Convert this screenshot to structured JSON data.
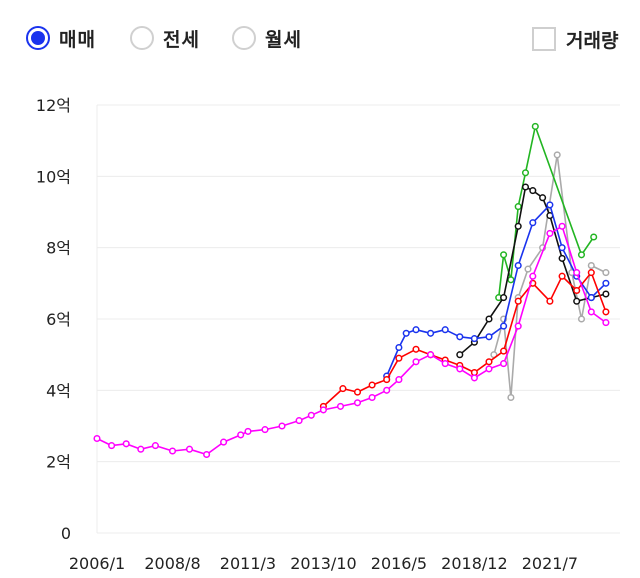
{
  "filters": {
    "trade_types": [
      {
        "label": "매매",
        "selected": true
      },
      {
        "label": "전세",
        "selected": false
      },
      {
        "label": "월세",
        "selected": false
      }
    ],
    "volume_checkbox": {
      "label": "거래량",
      "checked": false
    }
  },
  "colors": {
    "accent": "#1a33ee",
    "grid": "#ececec"
  },
  "chart_data": {
    "type": "line",
    "title": "",
    "xlabel": "",
    "ylabel": "",
    "x_tick_labels": [
      "2006/1",
      "2008/8",
      "2011/3",
      "2013/10",
      "2016/5",
      "2018/12",
      "2021/7"
    ],
    "y_tick_labels": [
      "0",
      "2억",
      "4억",
      "6억",
      "8억",
      "10억",
      "12억"
    ],
    "ylim": [
      0,
      12
    ],
    "y_unit": "억",
    "grid": true,
    "legend": "none",
    "series": [
      {
        "color": "#ff00ff",
        "values": [
          [
            "2006/1",
            2.65
          ],
          [
            "2006/7",
            2.45
          ],
          [
            "2007/1",
            2.5
          ],
          [
            "2007/7",
            2.35
          ],
          [
            "2008/1",
            2.45
          ],
          [
            "2008/8",
            2.3
          ],
          [
            "2009/3",
            2.35
          ],
          [
            "2009/10",
            2.2
          ],
          [
            "2010/5",
            2.55
          ],
          [
            "2010/12",
            2.75
          ],
          [
            "2011/3",
            2.85
          ],
          [
            "2011/10",
            2.9
          ],
          [
            "2012/5",
            3.0
          ],
          [
            "2012/12",
            3.15
          ],
          [
            "2013/5",
            3.3
          ],
          [
            "2013/10",
            3.45
          ],
          [
            "2014/5",
            3.55
          ],
          [
            "2014/12",
            3.65
          ],
          [
            "2015/6",
            3.8
          ],
          [
            "2015/12",
            4.0
          ],
          [
            "2016/5",
            4.3
          ],
          [
            "2016/12",
            4.8
          ],
          [
            "2017/6",
            5.0
          ],
          [
            "2017/12",
            4.75
          ],
          [
            "2018/6",
            4.6
          ],
          [
            "2018/12",
            4.35
          ],
          [
            "2019/6",
            4.6
          ],
          [
            "2019/12",
            4.75
          ],
          [
            "2020/6",
            5.8
          ],
          [
            "2020/12",
            7.2
          ],
          [
            "2021/7",
            8.4
          ],
          [
            "2021/12",
            8.6
          ],
          [
            "2022/6",
            7.3
          ],
          [
            "2022/12",
            6.2
          ],
          [
            "2023/6",
            5.9
          ]
        ]
      },
      {
        "color": "#ff0000",
        "values": [
          [
            "2013/10",
            3.55
          ],
          [
            "2014/6",
            4.05
          ],
          [
            "2014/12",
            3.95
          ],
          [
            "2015/6",
            4.15
          ],
          [
            "2015/12",
            4.3
          ],
          [
            "2016/5",
            4.9
          ],
          [
            "2016/12",
            5.15
          ],
          [
            "2017/6",
            5.0
          ],
          [
            "2017/12",
            4.85
          ],
          [
            "2018/6",
            4.7
          ],
          [
            "2018/12",
            4.5
          ],
          [
            "2019/6",
            4.8
          ],
          [
            "2019/12",
            5.1
          ],
          [
            "2020/6",
            6.5
          ],
          [
            "2020/12",
            7.0
          ],
          [
            "2021/7",
            6.5
          ],
          [
            "2021/12",
            7.2
          ],
          [
            "2022/6",
            6.8
          ],
          [
            "2022/12",
            7.3
          ],
          [
            "2023/6",
            6.2
          ]
        ]
      },
      {
        "color": "#1a33ee",
        "values": [
          [
            "2015/12",
            4.4
          ],
          [
            "2016/5",
            5.2
          ],
          [
            "2016/8",
            5.6
          ],
          [
            "2016/12",
            5.7
          ],
          [
            "2017/6",
            5.6
          ],
          [
            "2017/12",
            5.7
          ],
          [
            "2018/6",
            5.5
          ],
          [
            "2018/12",
            5.45
          ],
          [
            "2019/6",
            5.5
          ],
          [
            "2019/12",
            5.8
          ],
          [
            "2020/6",
            7.5
          ],
          [
            "2020/12",
            8.7
          ],
          [
            "2021/7",
            9.2
          ],
          [
            "2021/12",
            8.0
          ],
          [
            "2022/6",
            7.2
          ],
          [
            "2022/12",
            6.6
          ],
          [
            "2023/6",
            7.0
          ]
        ]
      },
      {
        "color": "#111111",
        "values": [
          [
            "2018/6",
            5.0
          ],
          [
            "2018/12",
            5.35
          ],
          [
            "2019/6",
            6.0
          ],
          [
            "2019/12",
            6.6
          ],
          [
            "2020/6",
            8.6
          ],
          [
            "2020/9",
            9.7
          ],
          [
            "2020/12",
            9.6
          ],
          [
            "2021/4",
            9.4
          ],
          [
            "2021/7",
            8.9
          ],
          [
            "2021/12",
            7.7
          ],
          [
            "2022/6",
            6.5
          ],
          [
            "2022/12",
            6.6
          ],
          [
            "2023/6",
            6.7
          ]
        ]
      },
      {
        "color": "#22b522",
        "values": [
          [
            "2019/10",
            6.6
          ],
          [
            "2019/12",
            7.8
          ],
          [
            "2020/3",
            7.1
          ],
          [
            "2020/6",
            9.15
          ],
          [
            "2020/9",
            10.1
          ],
          [
            "2021/1",
            11.4
          ],
          [
            "2022/8",
            7.8
          ],
          [
            "2023/1",
            8.3
          ]
        ]
      },
      {
        "color": "#aaaaaa",
        "values": [
          [
            "2019/8",
            5.0
          ],
          [
            "2019/12",
            6.0
          ],
          [
            "2020/3",
            3.8
          ],
          [
            "2020/6",
            6.6
          ],
          [
            "2020/10",
            7.4
          ],
          [
            "2021/4",
            8.0
          ],
          [
            "2021/10",
            10.6
          ],
          [
            "2022/4",
            7.3
          ],
          [
            "2022/8",
            6.0
          ],
          [
            "2022/12",
            7.5
          ],
          [
            "2023/6",
            7.3
          ]
        ]
      }
    ]
  }
}
